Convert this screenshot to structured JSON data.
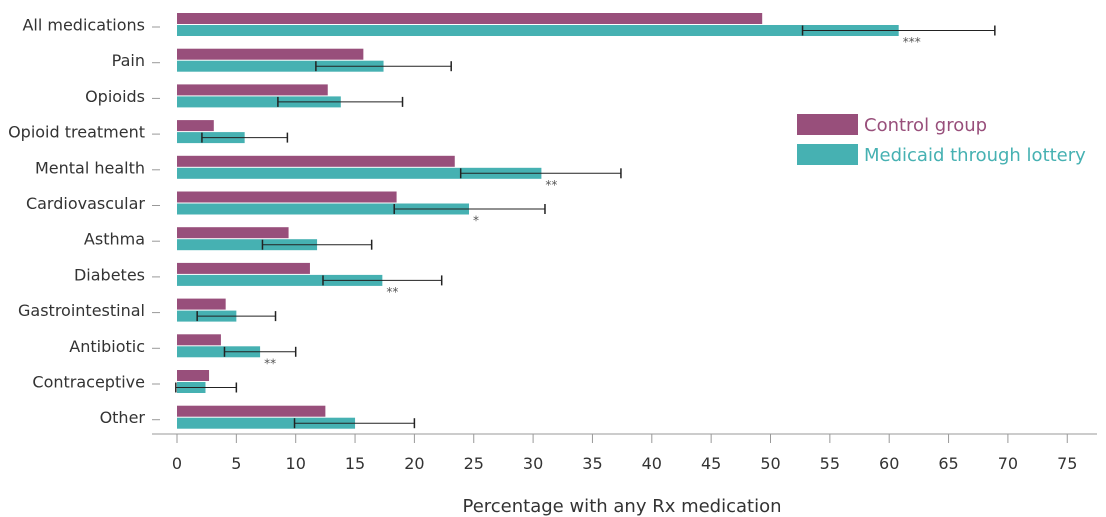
{
  "chart_data": {
    "type": "bar",
    "orientation": "horizontal",
    "categories": [
      "All medications",
      "Pain",
      "Opioids",
      "Opioid treatment",
      "Mental health",
      "Cardiovascular",
      "Asthma",
      "Diabetes",
      "Gastrointestinal",
      "Antibiotic",
      "Contraceptive",
      "Other"
    ],
    "series": [
      {
        "name": "Control group",
        "color": "#984F7B",
        "values": [
          49.3,
          15.7,
          12.7,
          3.1,
          23.4,
          18.5,
          9.4,
          11.2,
          4.1,
          3.7,
          2.7,
          12.5
        ]
      },
      {
        "name": "Medicaid through lottery",
        "color": "#46B1B2",
        "values": [
          60.8,
          17.4,
          13.8,
          5.7,
          30.7,
          24.6,
          11.8,
          17.3,
          5.0,
          7.0,
          2.4,
          15.0
        ],
        "error_low": [
          52.7,
          11.7,
          8.5,
          2.1,
          23.9,
          18.3,
          7.2,
          12.3,
          1.7,
          4.0,
          -0.1,
          9.9
        ],
        "error_high": [
          68.9,
          23.1,
          19.0,
          9.3,
          37.4,
          31.0,
          16.4,
          22.3,
          8.3,
          10.0,
          5.0,
          20.0
        ],
        "significance": [
          "***",
          "",
          "",
          "",
          "**",
          "*",
          "",
          "**",
          "",
          "**",
          "",
          ""
        ]
      }
    ],
    "xlabel": "Percentage with any Rx medication",
    "ylabel": "",
    "xlim": [
      0,
      75
    ],
    "xticks": [
      0,
      5,
      10,
      15,
      20,
      25,
      30,
      35,
      40,
      45,
      50,
      55,
      60,
      65,
      70,
      75
    ],
    "grid": false,
    "legend": {
      "position": "right",
      "entries": [
        "Control group",
        "Medicaid through lottery"
      ]
    }
  }
}
